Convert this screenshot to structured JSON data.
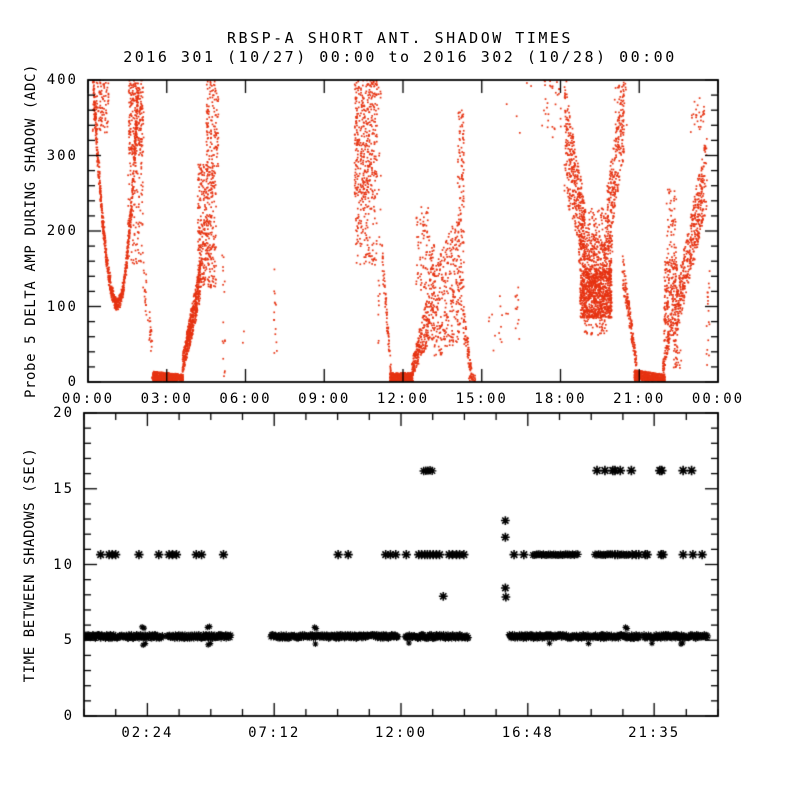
{
  "chart_data": [
    {
      "type": "scatter",
      "panel": "top",
      "title": "RBSP-A SHORT ANT. SHADOW TIMES",
      "subtitle": "2016 301 (10/27) 00:00 to 2016 302 (10/28) 00:00",
      "ylabel": "Probe 5 DELTA AMP DURING SHADOW (ADC)",
      "xlabel": "",
      "xlim": [
        0,
        24
      ],
      "ylim": [
        0,
        400
      ],
      "xticks": [
        {
          "h": 0,
          "label": "00:00"
        },
        {
          "h": 3,
          "label": "03:00"
        },
        {
          "h": 6,
          "label": "06:00"
        },
        {
          "h": 9,
          "label": "09:00"
        },
        {
          "h": 12,
          "label": "12:00"
        },
        {
          "h": 15,
          "label": "15:00"
        },
        {
          "h": 18,
          "label": "18:00"
        },
        {
          "h": 21,
          "label": "21:00"
        },
        {
          "h": 24,
          "label": "00:00"
        }
      ],
      "xminor": null,
      "yticks": [
        0,
        100,
        200,
        300,
        400
      ],
      "yminor": 20,
      "grid": false,
      "legend": null,
      "marker": "dot",
      "color": "#e63312",
      "segments": [
        {
          "kind": "ucurve",
          "x0": 0.2,
          "y0": 400,
          "xm": 1.12,
          "ym": 103,
          "x1": 1.9,
          "y1": 385,
          "n": 800,
          "jx": 0.03,
          "jy": 8
        },
        {
          "kind": "band",
          "x0": 0.18,
          "x1": 0.8,
          "ya0": 330,
          "yb0": 400,
          "ya1": 330,
          "yb1": 400,
          "n": 110
        },
        {
          "kind": "band",
          "x0": 1.55,
          "x1": 2.12,
          "ya0": 300,
          "yb0": 400,
          "ya1": 300,
          "yb1": 400,
          "n": 230
        },
        {
          "kind": "band",
          "x0": 1.5,
          "x1": 2.1,
          "ya0": 155,
          "yb0": 300,
          "ya1": 155,
          "yb1": 300,
          "n": 100
        },
        {
          "kind": "band",
          "x0": 2.1,
          "x1": 2.45,
          "ya0": 120,
          "yb0": 185,
          "ya1": 20,
          "yb1": 60,
          "n": 40
        },
        {
          "kind": "band",
          "x0": 2.45,
          "x1": 3.62,
          "ya0": 1,
          "yb0": 14,
          "ya1": 1,
          "yb1": 10,
          "n": 520
        },
        {
          "kind": "band",
          "x0": 3.6,
          "x1": 4.28,
          "ya0": 8,
          "yb0": 35,
          "ya1": 105,
          "yb1": 160,
          "n": 480
        },
        {
          "kind": "band",
          "x0": 4.18,
          "x1": 4.88,
          "ya0": 125,
          "yb0": 290,
          "ya1": 125,
          "yb1": 290,
          "n": 380
        },
        {
          "kind": "band",
          "x0": 4.5,
          "x1": 4.97,
          "ya0": 285,
          "yb0": 400,
          "ya1": 285,
          "yb1": 400,
          "n": 130
        },
        {
          "kind": "band",
          "x0": 5.1,
          "x1": 5.22,
          "ya0": 4,
          "yb0": 175,
          "ya1": 4,
          "yb1": 175,
          "n": 16
        },
        {
          "kind": "dots",
          "pts": [
            [
              5.9,
              52
            ],
            [
              5.94,
              67
            ]
          ]
        },
        {
          "kind": "band",
          "x0": 7.08,
          "x1": 7.2,
          "ya0": 28,
          "yb0": 175,
          "ya1": 28,
          "yb1": 175,
          "n": 14
        },
        {
          "kind": "band",
          "x0": 10.15,
          "x1": 11.02,
          "ya0": 245,
          "yb0": 400,
          "ya1": 245,
          "yb1": 400,
          "n": 400
        },
        {
          "kind": "band",
          "x0": 10.2,
          "x1": 11.0,
          "ya0": 155,
          "yb0": 245,
          "ya1": 155,
          "yb1": 245,
          "n": 110
        },
        {
          "kind": "band",
          "x0": 11.05,
          "x1": 11.16,
          "ya0": 40,
          "yb0": 400,
          "ya1": 40,
          "yb1": 400,
          "n": 22
        },
        {
          "kind": "band",
          "x0": 11.2,
          "x1": 11.55,
          "ya0": 140,
          "yb0": 195,
          "ya1": 4,
          "yb1": 18,
          "n": 70
        },
        {
          "kind": "band",
          "x0": 11.5,
          "x1": 12.38,
          "ya0": 1,
          "yb0": 12,
          "ya1": 1,
          "yb1": 12,
          "n": 420
        },
        {
          "kind": "band",
          "x0": 12.35,
          "x1": 13.02,
          "ya0": 6,
          "yb0": 28,
          "ya1": 55,
          "yb1": 130,
          "n": 230
        },
        {
          "kind": "band",
          "x0": 12.5,
          "x1": 13.05,
          "ya0": 120,
          "yb0": 235,
          "ya1": 120,
          "yb1": 235,
          "n": 80
        },
        {
          "kind": "band",
          "x0": 13.05,
          "x1": 13.2,
          "ya0": 55,
          "yb0": 185,
          "ya1": 55,
          "yb1": 185,
          "n": 75
        },
        {
          "kind": "band",
          "x0": 13.2,
          "x1": 14.15,
          "ya0": 28,
          "yb0": 150,
          "ya1": 55,
          "yb1": 230,
          "n": 270
        },
        {
          "kind": "band",
          "x0": 14.08,
          "x1": 14.32,
          "ya0": 75,
          "yb0": 360,
          "ya1": 75,
          "yb1": 360,
          "n": 140
        },
        {
          "kind": "band",
          "x0": 14.3,
          "x1": 14.62,
          "ya0": 55,
          "yb0": 110,
          "ya1": 2,
          "yb1": 18,
          "n": 70
        },
        {
          "kind": "band",
          "x0": 14.5,
          "x1": 14.8,
          "ya0": 1,
          "yb0": 10,
          "ya1": 1,
          "yb1": 10,
          "n": 18
        },
        {
          "kind": "band",
          "x0": 15.25,
          "x1": 16.1,
          "ya0": 38,
          "yb0": 125,
          "ya1": 38,
          "yb1": 125,
          "n": 14
        },
        {
          "kind": "band",
          "x0": 16.28,
          "x1": 16.44,
          "ya0": 55,
          "yb0": 135,
          "ya1": 55,
          "yb1": 135,
          "n": 12
        },
        {
          "kind": "dots",
          "pts": [
            [
              15.95,
              368
            ],
            [
              16.33,
              352
            ],
            [
              16.45,
              330
            ],
            [
              16.72,
              396
            ],
            [
              16.88,
              392
            ]
          ]
        },
        {
          "kind": "band",
          "x0": 17.3,
          "x1": 18.25,
          "ya0": 330,
          "yb0": 400,
          "ya1": 310,
          "yb1": 400,
          "n": 40
        },
        {
          "kind": "band",
          "x0": 18.15,
          "x1": 18.95,
          "ya0": 250,
          "yb0": 400,
          "ya1": 155,
          "yb1": 235,
          "n": 380
        },
        {
          "kind": "band",
          "x0": 18.75,
          "x1": 19.95,
          "ya0": 85,
          "yb0": 150,
          "ya1": 85,
          "yb1": 150,
          "n": 950
        },
        {
          "kind": "band",
          "x0": 18.7,
          "x1": 19.98,
          "ya0": 148,
          "yb0": 195,
          "ya1": 148,
          "yb1": 195,
          "n": 300
        },
        {
          "kind": "band",
          "x0": 18.75,
          "x1": 19.9,
          "ya0": 193,
          "yb0": 230,
          "ya1": 193,
          "yb1": 230,
          "n": 70
        },
        {
          "kind": "band",
          "x0": 18.9,
          "x1": 19.8,
          "ya0": 62,
          "yb0": 88,
          "ya1": 62,
          "yb1": 88,
          "n": 45
        },
        {
          "kind": "band",
          "x0": 19.78,
          "x1": 20.42,
          "ya0": 165,
          "yb0": 260,
          "ya1": 300,
          "yb1": 400,
          "n": 250
        },
        {
          "kind": "band",
          "x0": 20.05,
          "x1": 20.55,
          "ya0": 330,
          "yb0": 400,
          "ya1": 330,
          "yb1": 400,
          "n": 30
        },
        {
          "kind": "band",
          "x0": 20.35,
          "x1": 20.9,
          "ya0": 130,
          "yb0": 175,
          "ya1": 12,
          "yb1": 32,
          "n": 160
        },
        {
          "kind": "band",
          "x0": 20.8,
          "x1": 21.98,
          "ya0": 2,
          "yb0": 16,
          "ya1": 1,
          "yb1": 10,
          "n": 470
        },
        {
          "kind": "band",
          "x0": 21.9,
          "x1": 22.15,
          "ya0": 8,
          "yb0": 28,
          "ya1": 45,
          "yb1": 75,
          "n": 60
        },
        {
          "kind": "band",
          "x0": 21.95,
          "x1": 22.45,
          "ya0": 52,
          "yb0": 160,
          "ya1": 52,
          "yb1": 160,
          "n": 240
        },
        {
          "kind": "band",
          "x0": 22.02,
          "x1": 22.42,
          "ya0": 160,
          "yb0": 255,
          "ya1": 160,
          "yb1": 255,
          "n": 55
        },
        {
          "kind": "band",
          "x0": 22.3,
          "x1": 22.6,
          "ya0": 18,
          "yb0": 60,
          "ya1": 18,
          "yb1": 45,
          "n": 28
        },
        {
          "kind": "band",
          "x0": 22.45,
          "x1": 23.58,
          "ya0": 66,
          "yb0": 132,
          "ya1": 232,
          "yb1": 330,
          "n": 430
        },
        {
          "kind": "band",
          "x0": 22.95,
          "x1": 23.5,
          "ya0": 330,
          "yb0": 372,
          "ya1": 330,
          "yb1": 372,
          "n": 24
        },
        {
          "kind": "dots",
          "pts": [
            [
              23.3,
              376
            ],
            [
              23.36,
              352
            ],
            [
              23.44,
              345
            ]
          ]
        },
        {
          "kind": "band",
          "x0": 23.56,
          "x1": 23.68,
          "ya0": 2,
          "yb0": 148,
          "ya1": 2,
          "yb1": 148,
          "n": 18
        }
      ]
    },
    {
      "type": "scatter",
      "panel": "bottom",
      "title": "",
      "subtitle": "",
      "ylabel": "TIME BETWEEN SHADOWS (SEC)",
      "xlabel": "",
      "xlim": [
        0,
        24
      ],
      "ylim": [
        0,
        20
      ],
      "xticks": [
        {
          "h": 2.4,
          "label": "02:24"
        },
        {
          "h": 7.2,
          "label": "07:12"
        },
        {
          "h": 12,
          "label": "12:00"
        },
        {
          "h": 16.8,
          "label": "16:48"
        },
        {
          "h": 21.583,
          "label": "21:35"
        }
      ],
      "xminor": 1.2,
      "yticks": [
        0,
        5,
        10,
        15,
        20
      ],
      "yminor": 1,
      "grid": false,
      "legend": null,
      "marker": "asterisk",
      "color": "#000000",
      "rows": [
        {
          "y": 5.25,
          "runs": [
            [
              0.02,
              2.98
            ],
            [
              3.15,
              5.55
            ],
            [
              7.08,
              11.9
            ],
            [
              12.17,
              14.55
            ],
            [
              16.1,
              21.05
            ],
            [
              21.2,
              23.62
            ]
          ],
          "step": 0.024,
          "jitter": 0.13,
          "size": 3.6,
          "lw": 1.1,
          "singles": []
        },
        {
          "y": 10.65,
          "singles": [
            0.63,
            0.95,
            1.07,
            1.2,
            2.08,
            2.83,
            3.22,
            3.35,
            3.5,
            4.25,
            4.45,
            5.28,
            9.62,
            10.0,
            11.42,
            11.6,
            11.8,
            12.2,
            12.67,
            12.78,
            12.9,
            13.0,
            13.1,
            13.22,
            13.34,
            13.46,
            13.82,
            13.95,
            14.1,
            14.22,
            14.38,
            16.28,
            16.65,
            20.1,
            20.2,
            20.75,
            20.9,
            21.0,
            21.25,
            21.32,
            21.85,
            21.92,
            22.68,
            23.05,
            23.4
          ],
          "runs": [
            [
              17.0,
              18.72
            ],
            [
              19.35,
              20.0
            ],
            [
              20.28,
              20.62
            ]
          ],
          "step": 0.065,
          "jitter": 0.03,
          "size": 4.0,
          "lw": 1.3
        },
        {
          "y": 16.2,
          "singles": [
            19.42,
            19.72,
            20.02,
            20.1,
            20.3,
            20.72,
            21.8,
            21.87,
            22.68,
            23.0
          ],
          "runs": [
            [
              12.86,
              13.22
            ]
          ],
          "step": 0.08,
          "jitter": 0.03,
          "size": 4.2,
          "lw": 1.4
        }
      ],
      "outlier_points": [
        [
          13.6,
          7.9
        ],
        [
          15.95,
          12.9
        ],
        [
          15.95,
          11.8
        ],
        [
          15.95,
          8.45
        ],
        [
          15.97,
          7.85
        ]
      ],
      "stub_points": [
        [
          2.2,
          5.88
        ],
        [
          2.27,
          5.8
        ],
        [
          2.24,
          4.68
        ],
        [
          2.32,
          4.78
        ],
        [
          4.68,
          5.85
        ],
        [
          4.75,
          5.9
        ],
        [
          4.7,
          4.7
        ],
        [
          4.78,
          4.78
        ],
        [
          8.73,
          5.85
        ],
        [
          8.79,
          5.78
        ],
        [
          8.76,
          4.75
        ],
        [
          12.3,
          4.82
        ],
        [
          17.62,
          4.8
        ],
        [
          19.1,
          4.78
        ],
        [
          20.5,
          5.85
        ],
        [
          20.56,
          5.78
        ],
        [
          21.5,
          4.8
        ],
        [
          22.6,
          4.75
        ],
        [
          22.66,
          4.82
        ]
      ]
    }
  ]
}
